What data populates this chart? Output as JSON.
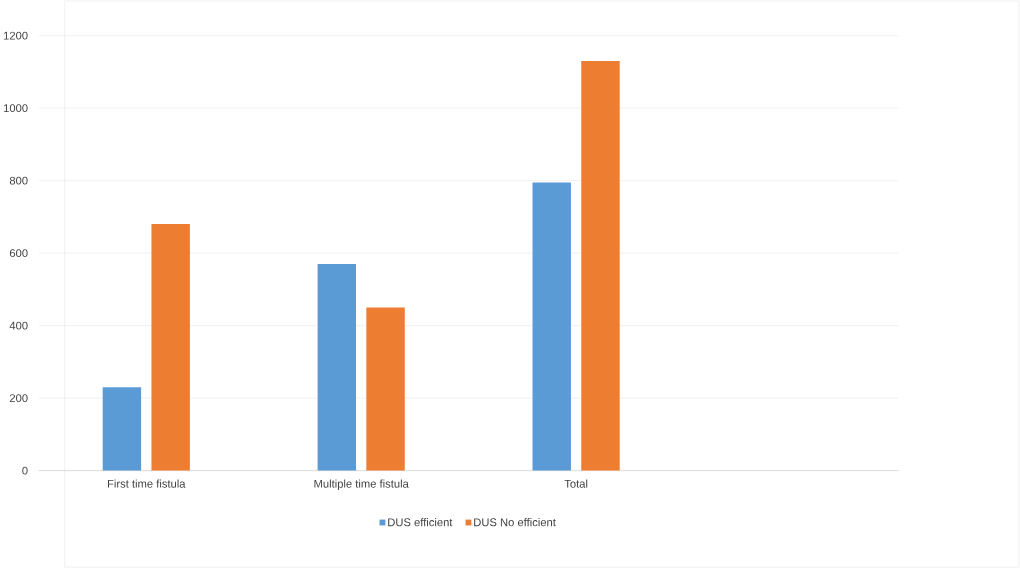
{
  "chart_data": {
    "type": "bar",
    "categories": [
      "First time fistula",
      "Multiple time fistula",
      "Total",
      null
    ],
    "series": [
      {
        "name": "DUS efficient",
        "color": "#5b9bd5",
        "values": [
          230,
          570,
          795,
          null
        ]
      },
      {
        "name": "DUS No efficient",
        "color": "#ed7d31",
        "values": [
          680,
          450,
          1130,
          null
        ]
      }
    ],
    "ylim": [
      0,
      1200
    ],
    "yticks": [
      0,
      200,
      400,
      600,
      800,
      1000,
      1200
    ],
    "grid": "y",
    "legend": "bottom"
  }
}
